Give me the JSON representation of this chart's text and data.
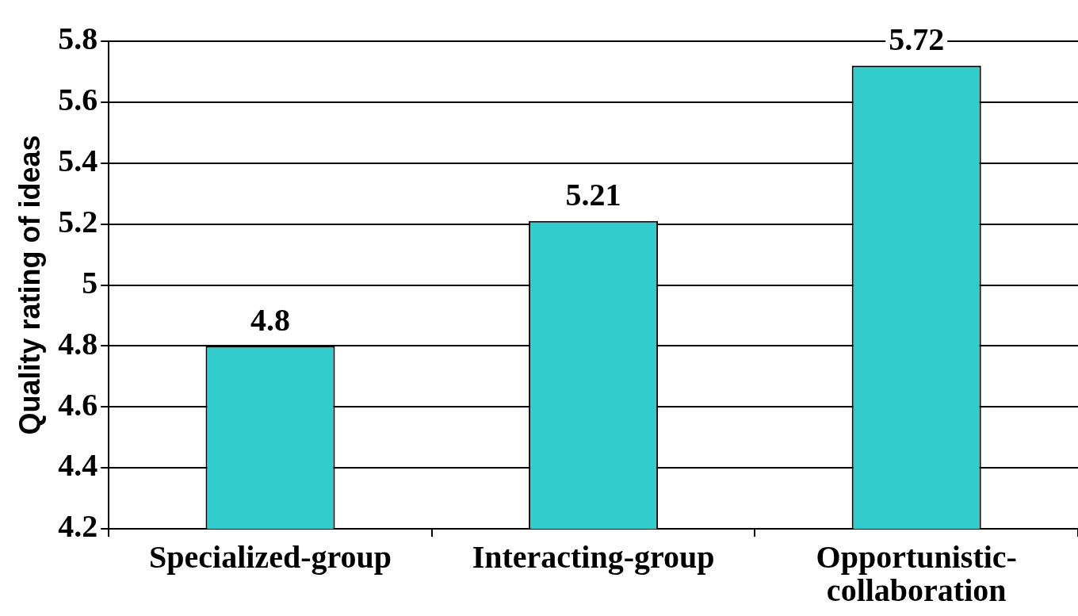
{
  "chart_data": {
    "type": "bar",
    "ylabel": "Quality rating of ideas",
    "categories": [
      "Specialized-group",
      "Interacting-group",
      "Opportunistic-collaboration"
    ],
    "values": [
      4.8,
      5.21,
      5.72
    ],
    "color": "#33cccc",
    "ylim": [
      4.2,
      5.8
    ],
    "yticks": [
      4.2,
      4.4,
      4.6,
      4.8,
      5,
      5.2,
      5.4,
      5.6,
      5.8
    ],
    "grid": "y",
    "data_labels": true,
    "legend": false
  }
}
